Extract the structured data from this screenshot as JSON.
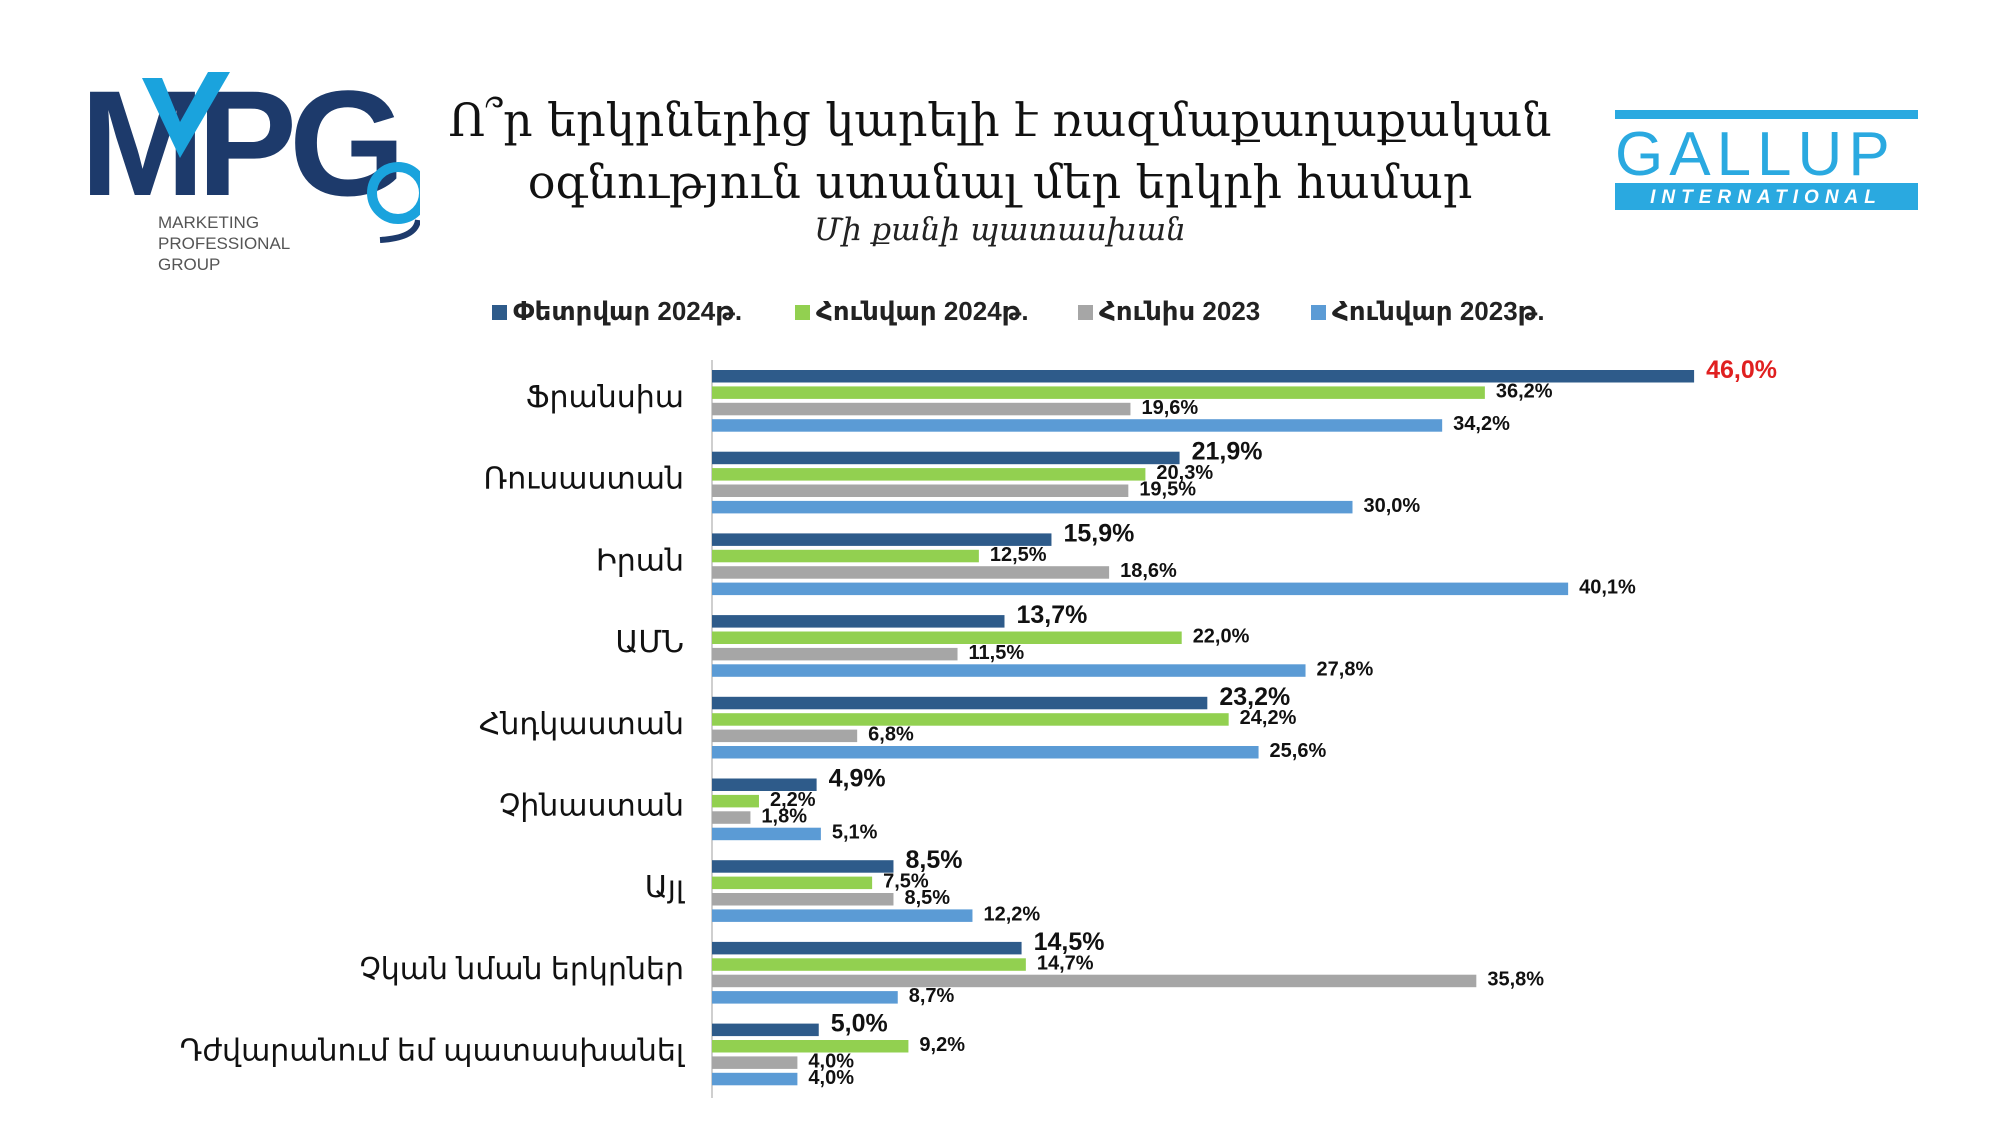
{
  "title_line1": "Ո՞ր երկրներից կարելի է ռազմաքաղաքական",
  "title_line2": "օգնություն ստանալ մեր երկրի համար",
  "subtitle": "Մի քանի պատասխան",
  "mpg_logo": {
    "wordmark": "MPG",
    "line1": "MARKETING",
    "line2": "PROFESSIONAL",
    "line3": "GROUP"
  },
  "gallup_logo": {
    "line1": "GALLUP",
    "line2": "INTERNATIONAL"
  },
  "colors": {
    "feb2024": "#2e5b8a",
    "jan2024": "#92d050",
    "jun2023": "#a6a6a6",
    "jan2023": "#5b9bd5",
    "highlight": "#e02020",
    "mpg_dark": "#1d3a6b",
    "mpg_light": "#1aa3dd",
    "gallup_blue": "#2aa9e0"
  },
  "chart_data": {
    "type": "bar",
    "orientation": "horizontal",
    "categories": [
      "Ֆրանսիա",
      "Ռուսաստան",
      "Իրան",
      "ԱՄՆ",
      "Հնդկաստան",
      "Չինաստան",
      "Այլ",
      "Չկան նման երկրներ",
      "Դժվարանում եմ պատասխանել"
    ],
    "series": [
      {
        "name": "Փետրվար 2024թ.",
        "values": [
          46.0,
          21.9,
          15.9,
          13.7,
          23.2,
          4.9,
          8.5,
          14.5,
          5.0
        ],
        "labels": [
          "46,0%",
          "21,9%",
          "15,9%",
          "13,7%",
          "23,2%",
          "4,9%",
          "8,5%",
          "14,5%",
          "5,0%"
        ]
      },
      {
        "name": "Հունվար 2024թ.",
        "values": [
          36.2,
          20.3,
          12.5,
          22.0,
          24.2,
          2.2,
          7.5,
          14.7,
          9.2
        ],
        "labels": [
          "36,2%",
          "20,3%",
          "12,5%",
          "22,0%",
          "24,2%",
          "2,2%",
          "7,5%",
          "14,7%",
          "9,2%"
        ]
      },
      {
        "name": "Հունիս 2023",
        "values": [
          19.6,
          19.5,
          18.6,
          11.5,
          6.8,
          1.8,
          8.5,
          35.8,
          4.0
        ],
        "labels": [
          "19,6%",
          "19,5%",
          "18,6%",
          "11,5%",
          "6,8%",
          "1,8%",
          "8,5%",
          "35,8%",
          "4,0%"
        ]
      },
      {
        "name": "Հունվար 2023թ.",
        "values": [
          34.2,
          30.0,
          40.1,
          27.8,
          25.6,
          5.1,
          12.2,
          8.7,
          4.0
        ],
        "labels": [
          "34,2%",
          "30,0%",
          "40,1%",
          "27,8%",
          "25,6%",
          "5,1%",
          "12,2%",
          "8,7%",
          "4,0%"
        ]
      }
    ],
    "highlight_label": "46,0%",
    "xlim": [
      0,
      50
    ],
    "grid": false,
    "legend_position": "top"
  }
}
